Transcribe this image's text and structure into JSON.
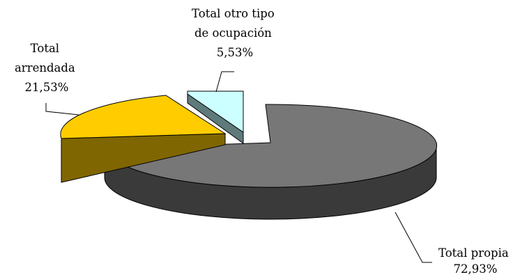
{
  "chart_data": {
    "type": "pie",
    "style": "3d-exploded",
    "title": "",
    "slices": [
      {
        "name": "Total propia",
        "value": 72.93,
        "value_label": "72,93%",
        "top_color": "#777777",
        "side_color": "#3a3a3a"
      },
      {
        "name": "Total otro tipo de ocupación",
        "value": 5.53,
        "value_label": "5,53%",
        "top_color": "#ccffff",
        "side_color": "#5f7a7a"
      },
      {
        "name": "Total arrendada",
        "value": 21.53,
        "value_label": "21,53%",
        "top_color": "#ffcc00",
        "side_color": "#806600"
      }
    ],
    "labels": {
      "propia": {
        "line1": "Total propia",
        "line2": "72,93%"
      },
      "otro": {
        "line1": "Total otro tipo",
        "line2": "de ocupación",
        "line3": "5,53%"
      },
      "arrendada": {
        "line1": "Total",
        "line2": "arrendada",
        "line3": "21,53%"
      }
    }
  }
}
